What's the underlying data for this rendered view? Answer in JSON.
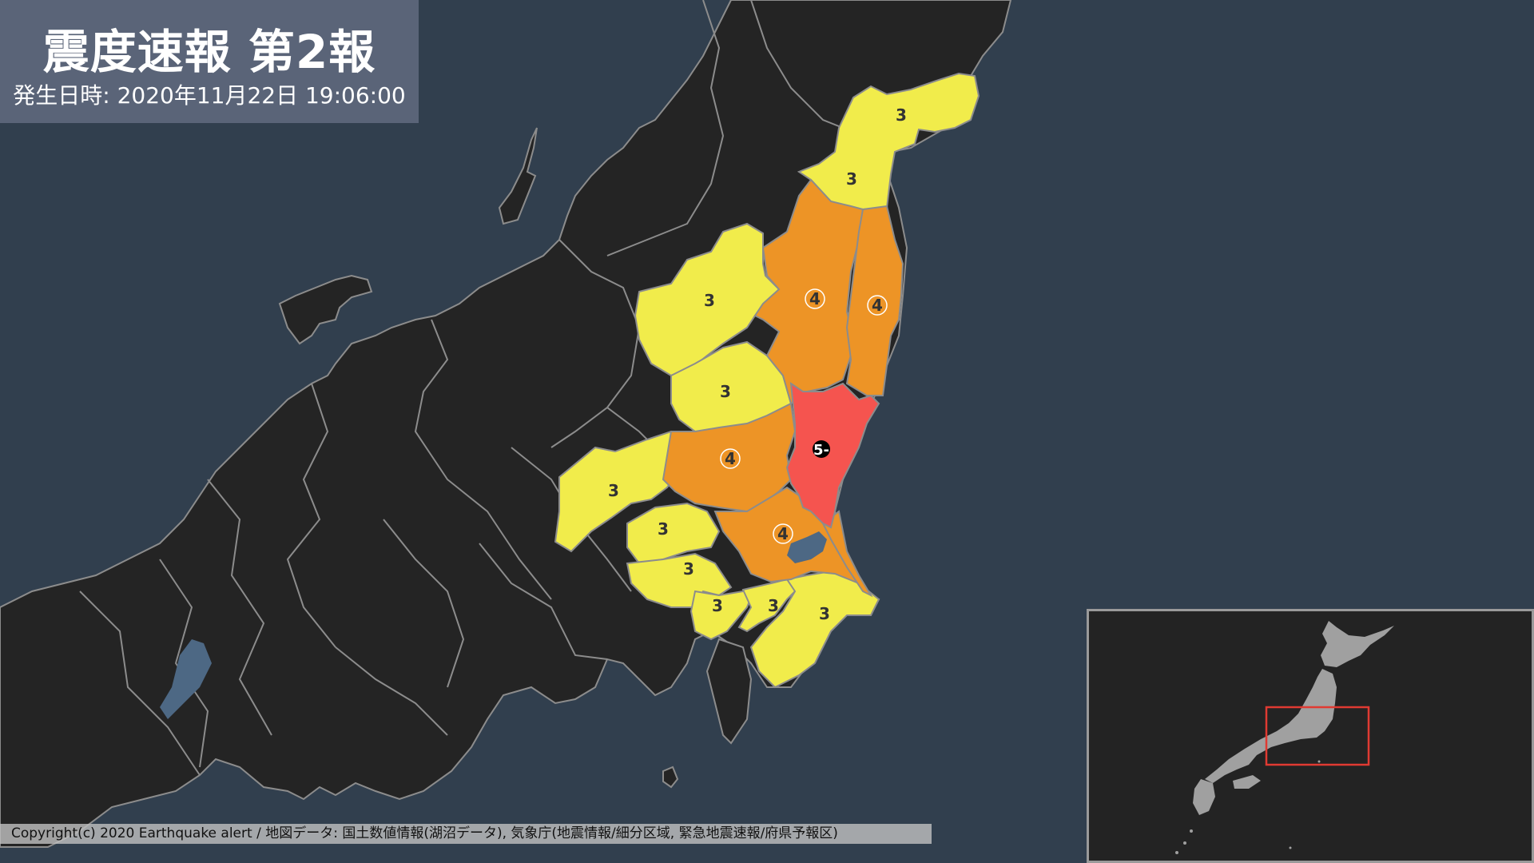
{
  "header": {
    "title": "震度速報 第2報",
    "subtitle": "発生日時: 2020年11月22日 19:06:00"
  },
  "footer": {
    "copyright": "Copyright(c) 2020 Earthquake alert / 地図データ: 国土数値情報(湖沼データ), 気象庁(地震情報/細分区域, 緊急地震速報/府県予報区)"
  },
  "colors": {
    "sea": "#313f4e",
    "land": "#242424",
    "border": "#8c8c8c",
    "shindo3": "#f1ec4b",
    "shindo4": "#ed9426",
    "shindo5minus": "#f5544f",
    "inset_land": "#a0a0a0",
    "inset_frame": "#e03a32"
  },
  "intensity_markers": [
    {
      "label": "3"
    },
    {
      "label": "3"
    },
    {
      "label": "3"
    },
    {
      "label": "4"
    },
    {
      "label": "4"
    },
    {
      "label": "3"
    },
    {
      "label": "5-"
    },
    {
      "label": "4"
    },
    {
      "label": "3"
    },
    {
      "label": "3"
    },
    {
      "label": "4"
    },
    {
      "label": "3"
    },
    {
      "label": "3"
    },
    {
      "label": "3"
    },
    {
      "label": "3"
    }
  ]
}
